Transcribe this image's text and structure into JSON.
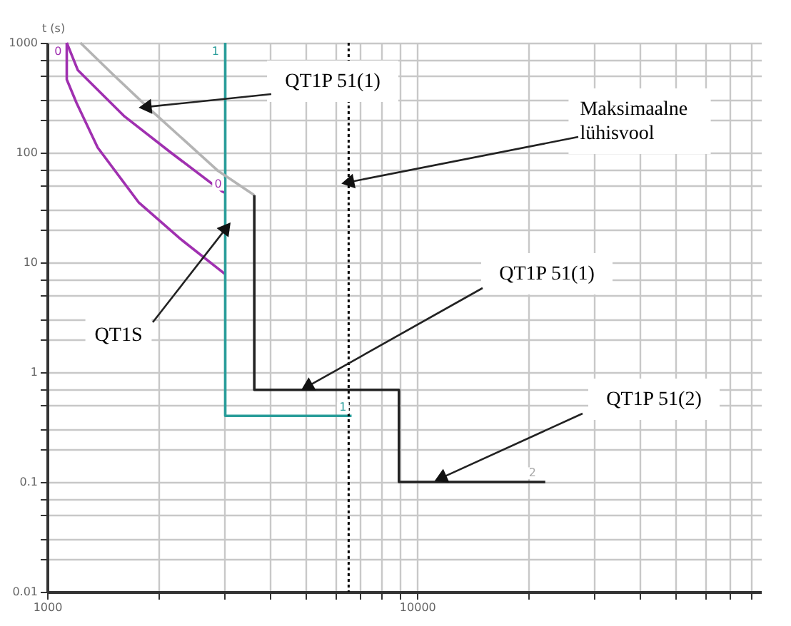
{
  "chart_data": {
    "type": "line",
    "ylabel": "t (s)",
    "log": "xy",
    "grid": true,
    "marker": "none",
    "line_style": "solid",
    "xlim": [
      1000,
      85000
    ],
    "ylim": [
      0.01,
      1000
    ],
    "xticks": [
      1000,
      {
        "value": 2000,
        "label": null
      },
      {
        "value": 3000,
        "label": null
      },
      {
        "value": 4000,
        "label": null
      },
      {
        "value": 5000,
        "label": null
      },
      {
        "value": 6000,
        "label": null
      },
      {
        "value": 7000,
        "label": null
      },
      {
        "value": 8000,
        "label": null
      },
      {
        "value": 9000,
        "label": null
      },
      10000,
      {
        "value": 20000,
        "label": null
      },
      {
        "value": 30000,
        "label": null
      },
      {
        "value": 40000,
        "label": null
      },
      {
        "value": 50000,
        "label": null
      },
      {
        "value": 60000,
        "label": null
      },
      {
        "value": 70000,
        "label": null
      },
      {
        "value": 80000,
        "label": null
      }
    ],
    "yticks": [
      0.01,
      {
        "value": 0.02,
        "label": null
      },
      {
        "value": 0.03,
        "label": null
      },
      {
        "value": 0.05,
        "label": null
      },
      {
        "value": 0.07,
        "label": null
      },
      0.1,
      {
        "value": 0.2,
        "label": null
      },
      {
        "value": 0.3,
        "label": null
      },
      {
        "value": 0.5,
        "label": null
      },
      {
        "value": 0.7,
        "label": null
      },
      1,
      {
        "value": 2,
        "label": null
      },
      {
        "value": 3,
        "label": null
      },
      {
        "value": 5,
        "label": null
      },
      {
        "value": 7,
        "label": null
      },
      10,
      {
        "value": 20,
        "label": null
      },
      {
        "value": 30,
        "label": null
      },
      {
        "value": 50,
        "label": null
      },
      {
        "value": 70,
        "label": null
      },
      100,
      {
        "value": 200,
        "label": null
      },
      {
        "value": 300,
        "label": null
      },
      {
        "value": 500,
        "label": null
      },
      {
        "value": 700,
        "label": null
      },
      1000
    ],
    "series": [
      {
        "color": "#a030b0",
        "x": [
          1130,
          1210,
          1620,
          2160,
          2980,
          3030
        ],
        "values": [
          1000,
          565,
          213,
          100,
          44,
          43
        ]
      },
      {
        "color": "#a030b0",
        "x": [
          1130,
          1130,
          1200,
          1370,
          1770,
          2290,
          3030
        ],
        "values": [
          1000,
          463,
          285,
          111,
          35,
          16.4,
          7.8
        ]
      },
      {
        "color": "#2a9d9a",
        "x": [
          3030,
          3030,
          6650
        ],
        "values": [
          1000,
          0.4,
          0.4
        ]
      },
      {
        "color": "#b4b4b4",
        "x": [
          1230,
          1490,
          1865,
          2900,
          3630
        ],
        "values": [
          1000,
          533,
          261,
          68,
          41
        ]
      },
      {
        "color": "#222222",
        "x": [
          3630,
          3630,
          8930,
          8930,
          22200
        ],
        "values": [
          41,
          0.69,
          0.69,
          0.1,
          0.1
        ]
      }
    ],
    "ref_lines": [
      {
        "axis": "x",
        "value": 6530,
        "color": "#000000",
        "line_style": "dotted"
      }
    ],
    "annotations": [
      {
        "text": "QT1P 51(1)",
        "x": 1865,
        "y": 261
      },
      {
        "text": "Maksimaalne\nlühisvool",
        "x": 6580,
        "y": 54
      },
      {
        "text": "QT1S",
        "x": 3030,
        "y": 20
      },
      {
        "text": "QT1P 51(1)",
        "x": 5090,
        "y": 0.75
      },
      {
        "text": "QT1P 51(2)",
        "x": 11700,
        "y": 0.11
      },
      {
        "text": "0",
        "x": 1070,
        "y": 820
      },
      {
        "text": "1",
        "x": 2850,
        "y": 820
      },
      {
        "text": "0",
        "x": 2900,
        "y": 51
      },
      {
        "text": "1",
        "x": 6300,
        "y": 0.47
      },
      {
        "text": "2",
        "x": 20500,
        "y": 0.12
      }
    ]
  }
}
